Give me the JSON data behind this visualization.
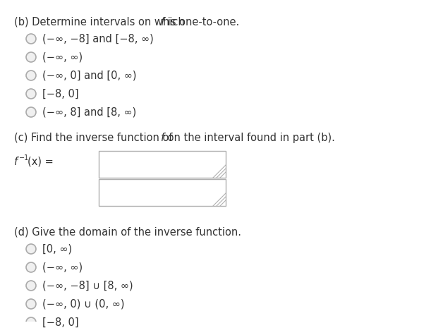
{
  "bg_color": "#ffffff",
  "text_color": "#333333",
  "radio_outline_color": "#aaaaaa",
  "section_b_title_plain": "(b) Determine intervals on which ",
  "section_b_title_italic": "f",
  "section_b_title_end": " is one-to-one.",
  "section_b_options": [
    "(−∞, −8] and [−8, ∞)",
    "(−∞, ∞)",
    "(−∞, 0] and [0, ∞)",
    "[−8, 0]",
    "(−∞, 8] and [8, ∞)"
  ],
  "section_c_title_plain": "(c) Find the inverse function of ",
  "section_c_title_italic": "f",
  "section_c_title_end": " on the interval found in part (b).",
  "section_d_title": "(d) Give the domain of the inverse function.",
  "section_d_options": [
    "[0, ∞)",
    "(−∞, ∞)",
    "(−∞, −8] ∪ [8, ∞)",
    "(−∞, 0) ∪ (0, ∞)",
    "[−8, 0]"
  ],
  "font_size": 10.5,
  "box_edge_color": "#b0b0b0",
  "handle_color": "#b0b0b0"
}
